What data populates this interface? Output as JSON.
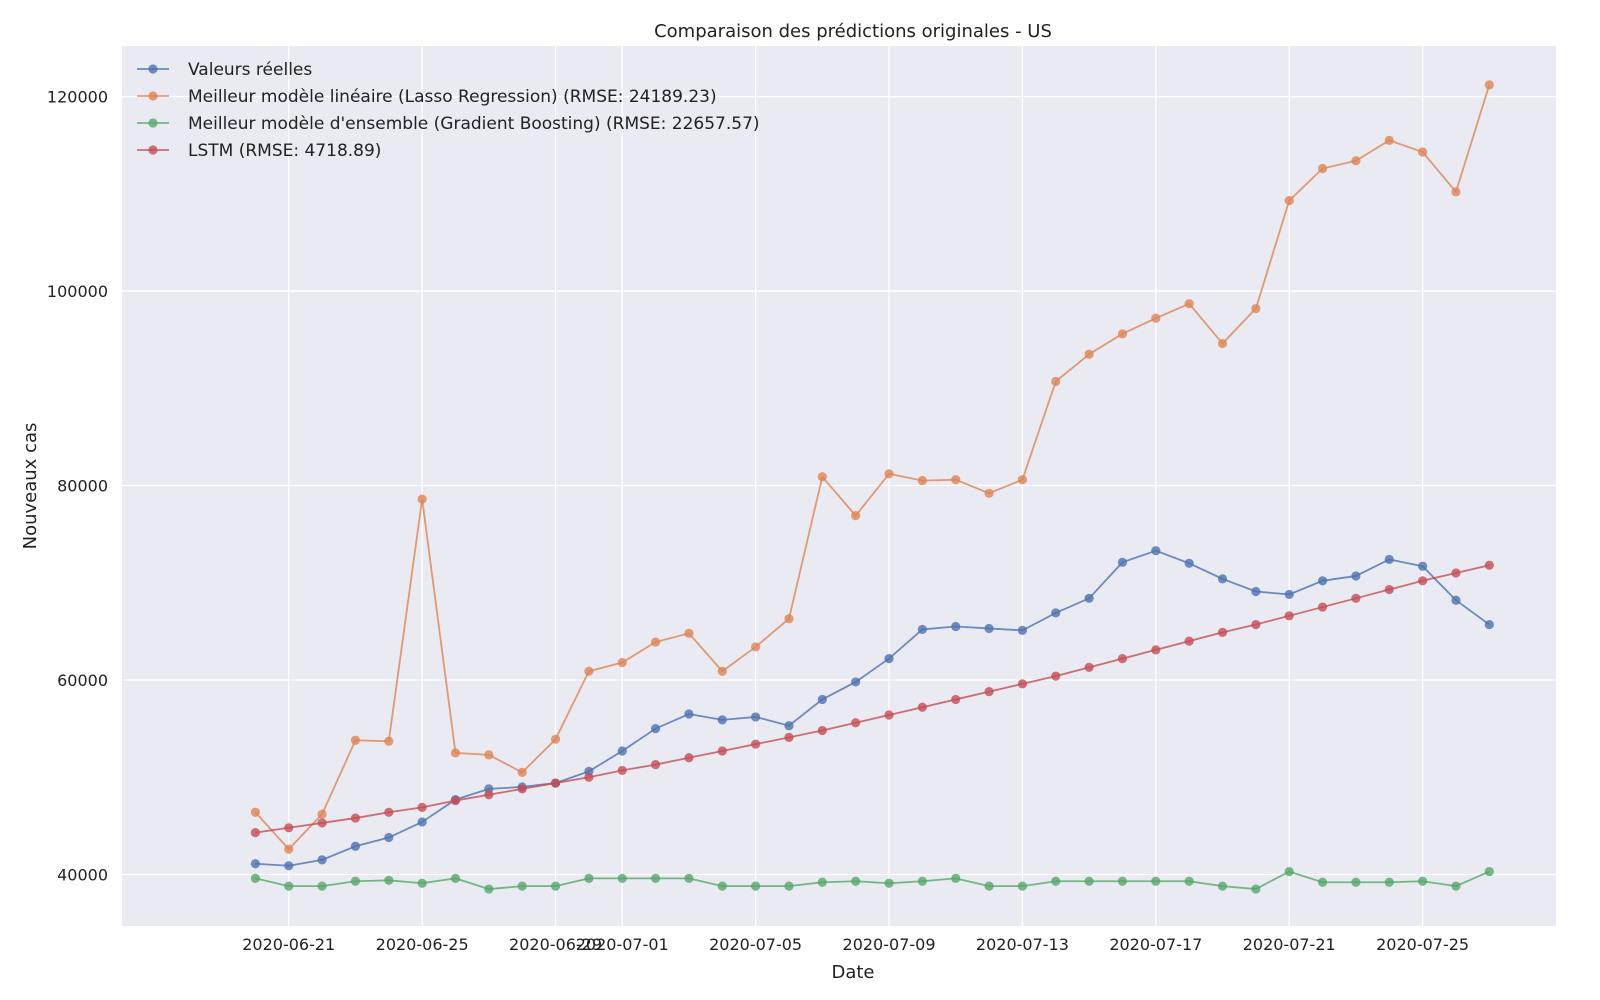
{
  "chart_data": {
    "type": "line",
    "title": "Comparaison des prédictions originales - US",
    "xlabel": "Date",
    "ylabel": "Nouveaux cas",
    "legend_position": "top-left",
    "grid": true,
    "background": "#eaeaf2",
    "xlim": [
      "2020-06-16",
      "2020-07-29"
    ],
    "ylim": [
      34700,
      125200
    ],
    "x_ticks": [
      "2020-06-21",
      "2020-06-25",
      "2020-06-29",
      "2020-07-01",
      "2020-07-05",
      "2020-07-09",
      "2020-07-13",
      "2020-07-17",
      "2020-07-21",
      "2020-07-25"
    ],
    "y_ticks": [
      40000,
      60000,
      80000,
      100000,
      120000
    ],
    "x": [
      "2020-06-20",
      "2020-06-21",
      "2020-06-22",
      "2020-06-23",
      "2020-06-24",
      "2020-06-25",
      "2020-06-26",
      "2020-06-27",
      "2020-06-28",
      "2020-06-29",
      "2020-06-30",
      "2020-07-01",
      "2020-07-02",
      "2020-07-03",
      "2020-07-04",
      "2020-07-05",
      "2020-07-06",
      "2020-07-07",
      "2020-07-08",
      "2020-07-09",
      "2020-07-10",
      "2020-07-11",
      "2020-07-12",
      "2020-07-13",
      "2020-07-14",
      "2020-07-15",
      "2020-07-16",
      "2020-07-17",
      "2020-07-18",
      "2020-07-19",
      "2020-07-20",
      "2020-07-21",
      "2020-07-22",
      "2020-07-23",
      "2020-07-24",
      "2020-07-25",
      "2020-07-26",
      "2020-07-27"
    ],
    "series": [
      {
        "name": "Valeurs réelles",
        "color": "#4c72b0",
        "values": [
          41100,
          40900,
          41500,
          42900,
          43800,
          45400,
          47700,
          48800,
          49000,
          49400,
          50600,
          52700,
          55000,
          56500,
          55900,
          56200,
          55300,
          58000,
          59800,
          62200,
          65200,
          65500,
          65300,
          65100,
          66900,
          68400,
          72100,
          73300,
          72000,
          70400,
          69100,
          68800,
          70200,
          70700,
          72400,
          71700,
          68200,
          65700
        ]
      },
      {
        "name": "Meilleur modèle linéaire (Lasso Regression) (RMSE: 24189.23)",
        "color": "#dd8452",
        "values": [
          46400,
          42600,
          46200,
          53800,
          53700,
          78600,
          52500,
          52300,
          50500,
          53900,
          60900,
          61800,
          63900,
          64800,
          60900,
          63400,
          66300,
          80900,
          76900,
          81200,
          80500,
          80600,
          79200,
          80600,
          90700,
          93500,
          95600,
          97200,
          98700,
          94600,
          98200,
          109300,
          112600,
          113400,
          115500,
          114300,
          110200,
          121200
        ]
      },
      {
        "name": "Meilleur modèle d'ensemble (Gradient Boosting) (RMSE: 22657.57)",
        "color": "#55a868",
        "values": [
          39600,
          38800,
          38800,
          39300,
          39400,
          39100,
          39600,
          38500,
          38800,
          38800,
          39600,
          39600,
          39600,
          39600,
          38800,
          38800,
          38800,
          39200,
          39300,
          39100,
          39300,
          39600,
          38800,
          38800,
          39300,
          39300,
          39300,
          39300,
          39300,
          38800,
          38500,
          40300,
          39200,
          39200,
          39200,
          39300,
          38800,
          40300
        ]
      },
      {
        "name": "LSTM (RMSE: 4718.89)",
        "color": "#c44e52",
        "values": [
          44300,
          44800,
          45300,
          45800,
          46400,
          46900,
          47600,
          48200,
          48800,
          49400,
          50000,
          50700,
          51300,
          52000,
          52700,
          53400,
          54100,
          54800,
          55600,
          56400,
          57200,
          58000,
          58800,
          59600,
          60400,
          61300,
          62200,
          63100,
          64000,
          64900,
          65700,
          66600,
          67500,
          68400,
          69300,
          70200,
          71000,
          71800
        ]
      }
    ]
  }
}
